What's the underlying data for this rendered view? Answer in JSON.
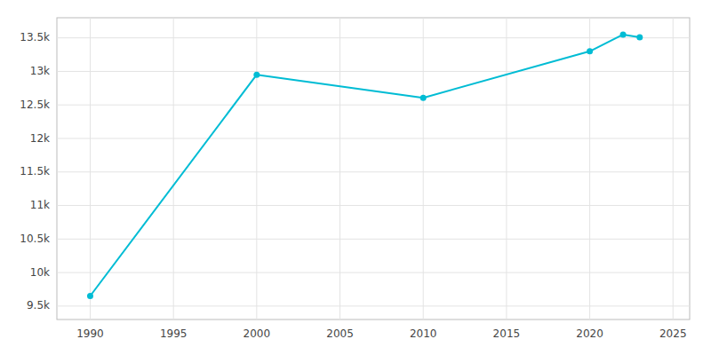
{
  "chart_data": {
    "type": "line",
    "x": [
      1990,
      2000,
      2010,
      2020,
      2022,
      2023
    ],
    "values": [
      9651,
      12951,
      12606,
      13300,
      13550,
      13510
    ],
    "color": "#00bcd4",
    "marker": "circle",
    "xlim": [
      1988,
      2026
    ],
    "ylim": [
      9300,
      13800
    ],
    "xticks": [
      1990,
      1995,
      2000,
      2005,
      2010,
      2015,
      2020,
      2025
    ],
    "yticks": [
      {
        "value": 9500,
        "label": "9.5k"
      },
      {
        "value": 10000,
        "label": "10k"
      },
      {
        "value": 10500,
        "label": "10.5k"
      },
      {
        "value": 11000,
        "label": "11k"
      },
      {
        "value": 11500,
        "label": "11.5k"
      },
      {
        "value": 12000,
        "label": "12k"
      },
      {
        "value": 12500,
        "label": "12.5k"
      },
      {
        "value": 13000,
        "label": "13k"
      },
      {
        "value": 13500,
        "label": "13.5k"
      }
    ],
    "grid": true
  }
}
